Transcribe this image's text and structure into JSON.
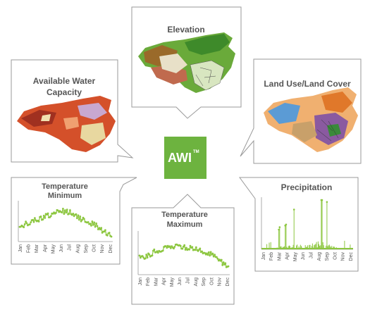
{
  "center": {
    "label": "AWI",
    "trademark": "TM",
    "color": "#6db33f"
  },
  "panels": {
    "elevation": {
      "title": "Elevation"
    },
    "land_use": {
      "title": "Land Use/Land Cover"
    },
    "water": {
      "title_line1": "Available Water",
      "title_line2": "Capacity"
    },
    "tmin": {
      "title_line1": "Temperature",
      "title_line2": "Minimum"
    },
    "tmax": {
      "title_line1": "Temperature",
      "title_line2": "Maximum"
    },
    "precip": {
      "title": "Precipitation"
    }
  },
  "months": [
    "Jan",
    "Feb",
    "Mar",
    "Apr",
    "May",
    "Jun",
    "Jul",
    "Aug",
    "Sep",
    "Oct",
    "Nov",
    "Dec"
  ],
  "colors": {
    "series": "#8cc63f",
    "frame": "#9a9a9a",
    "text": "#555555"
  },
  "chart_data": [
    {
      "type": "line",
      "title": "Temperature Minimum",
      "categories": [
        "Jan",
        "Feb",
        "Mar",
        "Apr",
        "May",
        "Jun",
        "Jul",
        "Aug",
        "Sep",
        "Oct",
        "Nov",
        "Dec"
      ],
      "values": [
        0.35,
        0.48,
        0.55,
        0.64,
        0.72,
        0.8,
        0.76,
        0.62,
        0.52,
        0.42,
        0.25,
        0.12
      ]
    },
    {
      "type": "line",
      "title": "Temperature Maximum",
      "categories": [
        "Jan",
        "Feb",
        "Mar",
        "Apr",
        "May",
        "Jun",
        "Jul",
        "Aug",
        "Sep",
        "Oct",
        "Nov",
        "Dec"
      ],
      "values": [
        0.38,
        0.46,
        0.55,
        0.62,
        0.7,
        0.68,
        0.65,
        0.6,
        0.55,
        0.45,
        0.3,
        0.14
      ]
    },
    {
      "type": "bar",
      "title": "Precipitation",
      "categories": [
        "Jan",
        "Feb",
        "Mar",
        "Apr",
        "May",
        "Jun",
        "Jul",
        "Aug",
        "Sep",
        "Oct",
        "Nov",
        "Dec"
      ],
      "values": [
        0.05,
        0.1,
        0.28,
        0.35,
        0.55,
        0.45,
        0.75,
        0.9,
        0.6,
        0.25,
        0.12,
        0.06
      ]
    }
  ]
}
